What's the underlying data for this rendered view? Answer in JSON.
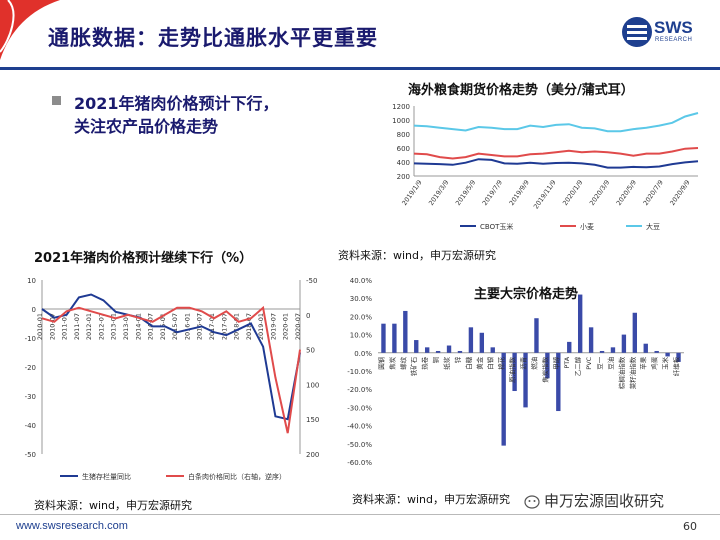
{
  "slide": {
    "title": "通胀数据：走势比通胀水平更重要",
    "logo": "SWS",
    "logo_sub": "RESEARCH",
    "bullet": "2021年猪肉价格预计下行，关注农产品价格走势",
    "footer_url": "www.swsresearch.com",
    "page_number": "60",
    "wechat": "申万宏源固收研究",
    "colors": {
      "navy": "#1a1a6e",
      "blue": "#1e3f8f",
      "red": "#e0312b"
    }
  },
  "chart_data": [
    {
      "id": "grain-futures",
      "type": "line",
      "title": "海外粮食期货价格走势（美分/蒲式耳）",
      "ylim": [
        200,
        1200
      ],
      "yticks": [
        200,
        400,
        600,
        800,
        1000,
        1200
      ],
      "xticks": [
        "2019/1/9",
        "2019/3/9",
        "2019/5/9",
        "2019/7/9",
        "2019/9/9",
        "2019/11/9",
        "2020/1/9",
        "2020/3/9",
        "2020/5/9",
        "2020/7/9",
        "2020/9/9"
      ],
      "x": [
        "2019/1",
        "2019/2",
        "2019/3",
        "2019/4",
        "2019/5",
        "2019/6",
        "2019/7",
        "2019/8",
        "2019/9",
        "2019/10",
        "2019/11",
        "2019/12",
        "2020/1",
        "2020/2",
        "2020/3",
        "2020/4",
        "2020/5",
        "2020/6",
        "2020/7",
        "2020/8",
        "2020/9",
        "2020/10",
        "2020/11"
      ],
      "series": [
        {
          "name": "CBOT玉米",
          "color": "#1f3a93",
          "values": [
            380,
            375,
            370,
            360,
            390,
            440,
            430,
            380,
            375,
            390,
            375,
            385,
            390,
            380,
            360,
            320,
            320,
            330,
            325,
            335,
            370,
            395,
            410
          ]
        },
        {
          "name": "小麦",
          "color": "#e04b4b",
          "values": [
            520,
            510,
            470,
            450,
            470,
            520,
            500,
            480,
            480,
            510,
            520,
            540,
            560,
            540,
            550,
            540,
            520,
            490,
            520,
            520,
            550,
            590,
            600
          ]
        },
        {
          "name": "大豆",
          "color": "#5bc8e8",
          "values": [
            920,
            910,
            890,
            870,
            850,
            900,
            890,
            870,
            870,
            920,
            900,
            930,
            940,
            890,
            880,
            840,
            840,
            870,
            890,
            920,
            960,
            1050,
            1100
          ]
        }
      ]
    },
    {
      "id": "pork",
      "type": "line",
      "title": "2021年猪肉价格预计继续下行（%）",
      "ylim": [
        -50,
        10
      ],
      "yticks": [
        10,
        0,
        -10,
        -20,
        -30,
        -40,
        -50
      ],
      "ylim_right": [
        200,
        -50
      ],
      "yticks_right": [
        -50,
        0,
        50,
        100,
        150,
        200
      ],
      "x": [
        "2010-01",
        "2010-07",
        "2011-01",
        "2011-07",
        "2012-01",
        "2012-07",
        "2013-01",
        "2013-07",
        "2014-01",
        "2014-07",
        "2015-01",
        "2015-07",
        "2016-01",
        "2016-07",
        "2017-01",
        "2017-07",
        "2018-01",
        "2018-07",
        "2019-01",
        "2019-07",
        "2020-01",
        "2020-07"
      ],
      "series": [
        {
          "name": "生猪存栏量同比",
          "axis": "left",
          "color": "#1f3a93",
          "values": [
            0,
            -3,
            -2,
            4,
            5,
            3,
            -1,
            -2,
            -3,
            -6,
            -6,
            -8,
            -7,
            -6,
            -8,
            -9,
            -7,
            -5,
            -13,
            -37,
            -38,
            -15
          ]
        },
        {
          "name": "白条肉价格同比（右轴，逆序）",
          "axis": "right",
          "color": "#e04b4b",
          "values": [
            5,
            10,
            -5,
            -10,
            -5,
            0,
            5,
            0,
            5,
            10,
            0,
            -10,
            -10,
            -5,
            5,
            -5,
            10,
            5,
            -10,
            90,
            170,
            50
          ]
        }
      ]
    },
    {
      "id": "commodities",
      "type": "bar",
      "title": "主要大宗价格走势",
      "ylim": [
        -60,
        40
      ],
      "yticks": [
        "40.0%",
        "30.0%",
        "20.0%",
        "10.0%",
        "0.0%",
        "-10.0%",
        "-20.0%",
        "-30.0%",
        "-40.0%",
        "-50.0%",
        "-60.0%"
      ],
      "categories": [
        "圆钢",
        "焦炭",
        "螺纹",
        "铁矿石",
        "热卷",
        "铜",
        "纸浆",
        "锌",
        "白糖",
        "黄金",
        "白银",
        "棉花",
        "原油指数",
        "沥青",
        "燃油",
        "焦炭指数",
        "甲醇",
        "PTA",
        "乙二醇",
        "PVC",
        "豆一",
        "豆油",
        "棕榈油指数",
        "菜籽油指数",
        "苹果",
        "鸡蛋",
        "玉米",
        "纤维板"
      ],
      "values": [
        16,
        16,
        23,
        7,
        3,
        1,
        4,
        1,
        14,
        11,
        3,
        -51,
        -21,
        -30,
        19,
        -14,
        -32,
        6,
        32,
        14,
        1,
        3,
        10,
        22,
        5,
        1,
        -2,
        -5
      ],
      "color": "#3a4aa8"
    }
  ],
  "sources": {
    "grain": "资料来源：wind，申万宏源研究",
    "pork": "资料来源：wind，申万宏源研究",
    "commodities": "资料来源：wind，申万宏源研究"
  }
}
